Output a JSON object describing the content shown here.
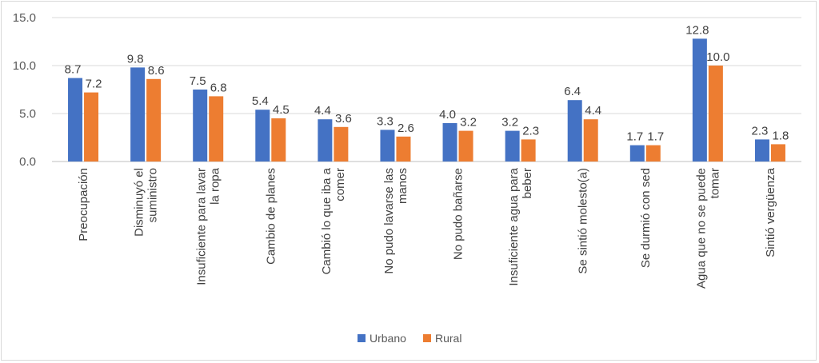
{
  "chart_data": {
    "type": "bar",
    "title": "",
    "xlabel": "",
    "ylabel": "",
    "ylim": [
      0,
      15
    ],
    "yticks": [
      "0.0",
      "5.0",
      "10.0",
      "15.0"
    ],
    "grid": true,
    "legend_position": "bottom-center",
    "categories": [
      [
        "Preocupación"
      ],
      [
        "Disminuyó el",
        "suministro"
      ],
      [
        "Insuficiente para lavar",
        "la ropa"
      ],
      [
        "Cambio de planes"
      ],
      [
        "Cambió lo que iba a",
        "comer"
      ],
      [
        "No pudo lavarse las",
        "manos"
      ],
      [
        "No pudo bañarse"
      ],
      [
        "Insuficiente agua para",
        "beber"
      ],
      [
        "Se sintió molesto(a)"
      ],
      [
        "Se durmió con sed"
      ],
      [
        "Agua que no se puede",
        "tomar"
      ],
      [
        "Sintió vergüenza"
      ]
    ],
    "series": [
      {
        "name": "Urbano",
        "color": "#4472c4",
        "values": [
          8.7,
          9.8,
          7.5,
          5.4,
          4.4,
          3.3,
          4.0,
          3.2,
          6.4,
          1.7,
          12.8,
          2.3
        ],
        "labels": [
          "8.7",
          "9.8",
          "7.5",
          "5.4",
          "4.4",
          "3.3",
          "4.0",
          "3.2",
          "6.4",
          "1.7",
          "12.8",
          "2.3"
        ]
      },
      {
        "name": "Rural",
        "color": "#ed7d31",
        "values": [
          7.2,
          8.6,
          6.8,
          4.5,
          3.6,
          2.6,
          3.2,
          2.3,
          4.4,
          1.7,
          10.0,
          1.8
        ],
        "labels": [
          "7.2",
          "8.6",
          "6.8",
          "4.5",
          "3.6",
          "2.6",
          "3.2",
          "2.3",
          "4.4",
          "1.7",
          "10.0",
          "1.8"
        ]
      }
    ]
  }
}
